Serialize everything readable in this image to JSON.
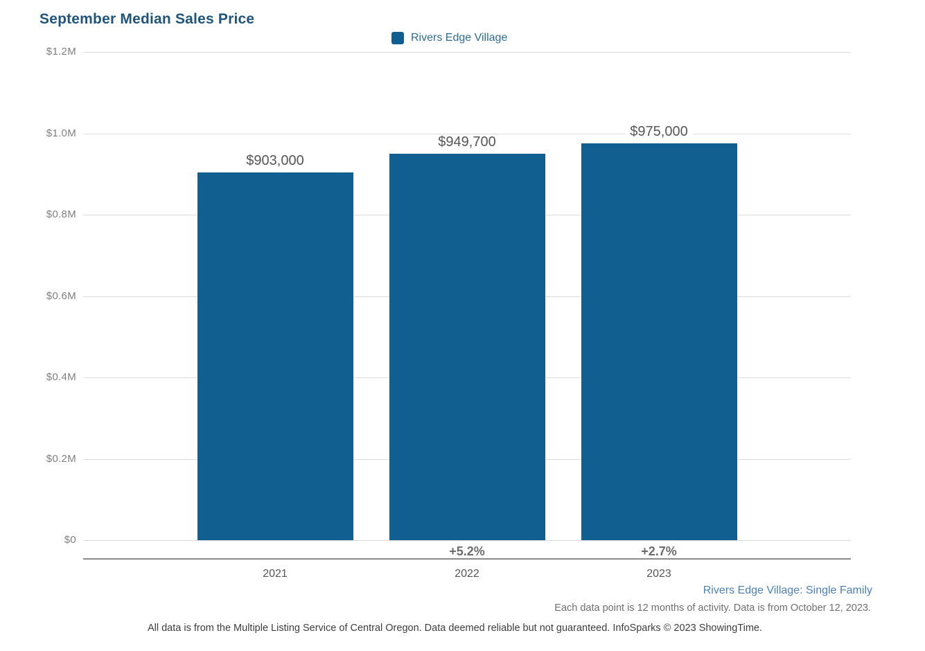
{
  "title": "September Median Sales Price",
  "legend": {
    "label": "Rivers Edge Village"
  },
  "chart_data": {
    "type": "bar",
    "title": "September Median Sales Price",
    "categories": [
      "2021",
      "2022",
      "2023"
    ],
    "values": [
      903000,
      949700,
      975000
    ],
    "value_labels": [
      "$903,000",
      "$949,700",
      "$975,000"
    ],
    "pct_change_labels": [
      "",
      "+5.2%",
      "+2.7%"
    ],
    "series_name": "Rivers Edge Village",
    "xlabel": "",
    "ylabel": "",
    "ylim": [
      0,
      1200000
    ],
    "ytick_values": [
      0,
      200000,
      400000,
      600000,
      800000,
      1000000,
      1200000
    ],
    "ytick_labels": [
      "$0",
      "$0.2M",
      "$0.4M",
      "$0.6M",
      "$0.8M",
      "$1.0M",
      "$1.2M"
    ],
    "grid": true,
    "legend_position": "top-center",
    "bar_color": "#115f90"
  },
  "colors": {
    "bar": "#115f90",
    "title": "#1f547c",
    "legend_text": "#2e6c93",
    "gridline": "#dcdcdc",
    "axis_line": "#8a8a8a",
    "value_label": "#555555",
    "pct_label": "#6b6b6b",
    "footer_blue": "#4a7fba"
  },
  "footer": {
    "series_note": "Rivers Edge Village: Single Family",
    "data_note": "Each data point is 12 months of activity. Data is from October 12, 2023.",
    "disclaimer": "All data is from the Multiple Listing Service of Central Oregon. Data deemed reliable but not guaranteed. InfoSparks © 2023 ShowingTime."
  }
}
